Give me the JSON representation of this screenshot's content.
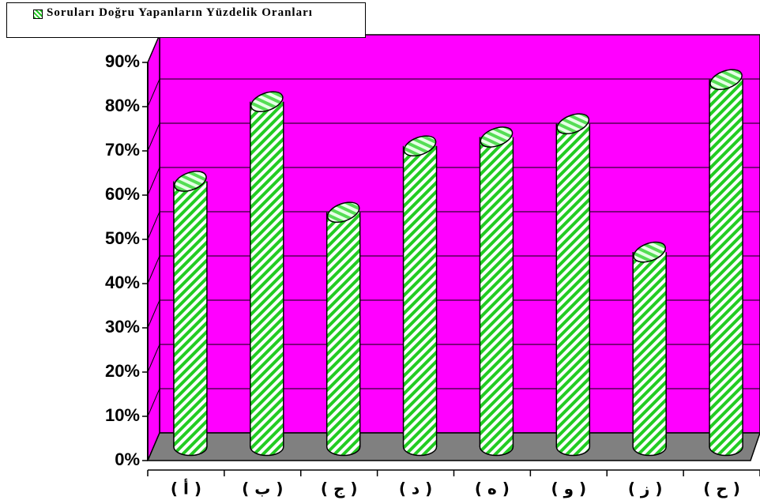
{
  "chart_data": {
    "type": "bar3d",
    "categories": [
      "( أ )",
      "( ب )",
      "( ج )",
      "( د )",
      "( ه )",
      "( و )",
      "( ز )",
      "( ح )"
    ],
    "series": [
      {
        "name": "Soruları Doğru Yapanların Yüzdelik Oranları",
        "color": "#22cc22",
        "values": [
          60,
          78,
          53,
          68,
          70,
          73,
          44,
          83
        ]
      }
    ],
    "ylim": [
      0,
      90
    ],
    "yticks": [
      {
        "value": 0,
        "label": "0%"
      },
      {
        "value": 10,
        "label": "10%"
      },
      {
        "value": 20,
        "label": "20%"
      },
      {
        "value": 30,
        "label": "30%"
      },
      {
        "value": 40,
        "label": "40%"
      },
      {
        "value": 50,
        "label": "50%"
      },
      {
        "value": 60,
        "label": "60%"
      },
      {
        "value": 70,
        "label": "70%"
      },
      {
        "value": 80,
        "label": "80%"
      },
      {
        "value": 90,
        "label": "90%"
      }
    ],
    "wall_color": "#ff00ff",
    "floor_color": "#808080",
    "grid": true
  }
}
